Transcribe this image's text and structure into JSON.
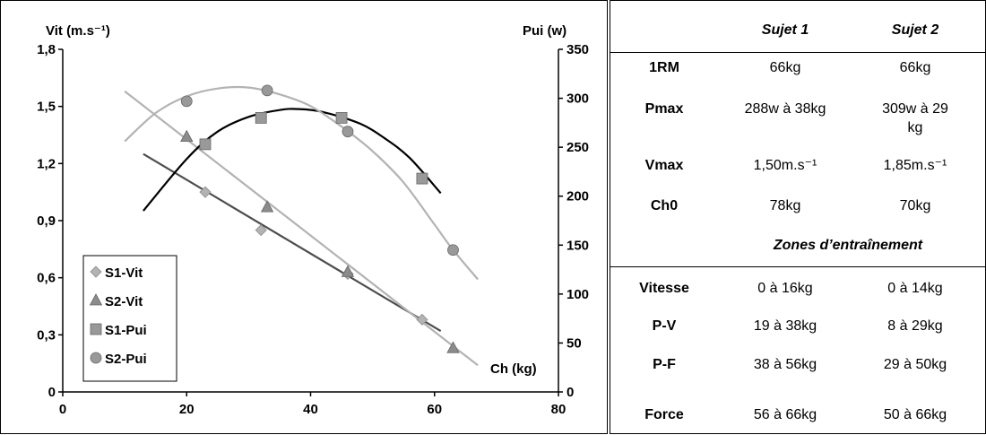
{
  "chart_data": {
    "type": "scatter",
    "y_left_label": "Vit (m.s⁻¹)",
    "y_right_label": "Pui (w)",
    "x_label": "Ch (kg)",
    "xlim": [
      0,
      80
    ],
    "x_ticks": [
      "0",
      "20",
      "40",
      "60",
      "80"
    ],
    "y_left_lim": [
      0,
      1.8
    ],
    "y_left_ticks": [
      "0",
      "0,3",
      "0,6",
      "0,9",
      "1,2",
      "1,5",
      "1,8"
    ],
    "y_right_lim": [
      0,
      350
    ],
    "y_right_ticks": [
      "0",
      "50",
      "100",
      "150",
      "200",
      "250",
      "300",
      "350"
    ],
    "grid": false,
    "legend_position": "bottom-left",
    "series": [
      {
        "name": "S1-Vit",
        "axis": "left",
        "marker": "diamond",
        "color": "#b3b3b3",
        "x": [
          23,
          32,
          46,
          58
        ],
        "y": [
          1.05,
          0.85,
          0.62,
          0.38
        ]
      },
      {
        "name": "S2-Vit",
        "axis": "left",
        "marker": "triangle",
        "color": "#8c8c8c",
        "x": [
          20,
          33,
          46,
          63
        ],
        "y": [
          1.34,
          0.97,
          0.63,
          0.23
        ]
      },
      {
        "name": "S1-Pui",
        "axis": "right",
        "marker": "square",
        "color": "#999999",
        "x": [
          23,
          32,
          45,
          58
        ],
        "y": [
          253,
          280,
          280,
          218
        ]
      },
      {
        "name": "S2-Pui",
        "axis": "right",
        "marker": "circle",
        "color": "#999999",
        "x": [
          20,
          33,
          46,
          63
        ],
        "y": [
          297,
          308,
          266,
          145
        ]
      }
    ],
    "trendlines": [
      {
        "series": "S1-Vit",
        "type": "linear",
        "axis": "left",
        "color": "#4d4d4d",
        "x": [
          13,
          61
        ],
        "y": [
          1.25,
          0.32
        ]
      },
      {
        "series": "S2-Vit",
        "type": "linear",
        "axis": "left",
        "color": "#b3b3b3",
        "x": [
          10,
          67
        ],
        "y": [
          1.58,
          0.14
        ]
      },
      {
        "series": "S1-Pui",
        "type": "polynomial",
        "axis": "right",
        "color": "#000000",
        "x": [
          13,
          20,
          25,
          30,
          35,
          38,
          42,
          48,
          52,
          56,
          61
        ],
        "y": [
          185,
          238,
          266,
          281,
          288,
          289,
          286,
          274,
          259,
          239,
          203
        ]
      },
      {
        "series": "S2-Pui",
        "type": "polynomial",
        "axis": "right",
        "color": "#b3b3b3",
        "x": [
          10,
          15,
          20,
          25,
          30,
          35,
          40,
          45,
          50,
          55,
          60,
          63,
          67
        ],
        "y": [
          256,
          285,
          302,
          310,
          311,
          304,
          292,
          271,
          246,
          214,
          171,
          145,
          115
        ]
      }
    ]
  },
  "table": {
    "headers": [
      "",
      "Sujet 1",
      "Sujet 2"
    ],
    "rows": [
      {
        "label": "1RM",
        "s1": "66kg",
        "s2": "66kg"
      },
      {
        "label": "Pmax",
        "s1": "288w à 38kg",
        "s2": "309w à 29 kg"
      },
      {
        "label": "Vmax",
        "s1": "1,50m.s⁻¹",
        "s2": "1,85m.s⁻¹"
      },
      {
        "label": "Ch0",
        "s1": "78kg",
        "s2": "70kg"
      }
    ],
    "section_title": "Zones d’entraînement",
    "zones": [
      {
        "label": "Vitesse",
        "s1": "0 à 16kg",
        "s2": "0 à 14kg"
      },
      {
        "label": "P-V",
        "s1": "19 à 38kg",
        "s2": "8 à 29kg"
      },
      {
        "label": "P-F",
        "s1": "38 à 56kg",
        "s2": "29 à 50kg"
      },
      {
        "label": "Force",
        "s1": "56 à 66kg",
        "s2": "50 à 66kg"
      }
    ]
  }
}
